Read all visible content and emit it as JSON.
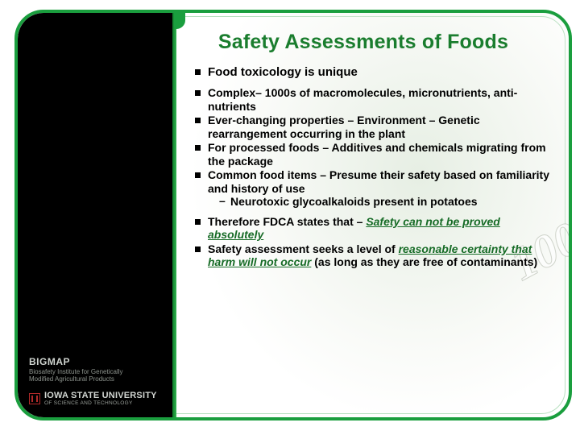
{
  "colors": {
    "frame_border": "#1a9e3e",
    "frame_inner": "#b8e0c0",
    "title_color": "#1a7d2e",
    "emphasis_color": "#166b26",
    "left_panel_bg": "#000000",
    "left_edge_a": "#0f7a2a",
    "left_edge_b": "#2fb54e",
    "bg_mark": "#b02a2a"
  },
  "bg_watermark": "100",
  "title": "Safety Assessments of Foods",
  "heading": "Food toxicology is unique",
  "bullets_a": [
    "Complex– 1000s of macromolecules, micronutrients, anti-nutrients",
    "Ever-changing properties – Environment – Genetic rearrangement occurring in the plant",
    "For processed foods – Additives and chemicals migrating from the package",
    "Common food items – Presume their safety based on familiarity and history of use"
  ],
  "sub_a": "Neurotoxic glycoalkaloids present in potatoes",
  "bullets_b_pre_1": "Therefore FDCA states that – ",
  "bullets_b_emph_1": "Safety can not be proved absolutely",
  "bullets_b_pre_2": "Safety assessment seeks a level of ",
  "bullets_b_emph_2": "reasonable certainty that harm will not occur",
  "bullets_b_post_2": " (as long as they are free of contaminants)",
  "logo": {
    "bigmap": "BIGMAP",
    "bigmap_sub_1": "Biosafety Institute for Genetically",
    "bigmap_sub_2": "Modified Agricultural Products",
    "isu_name": "IOWA STATE UNIVERSITY",
    "isu_sub": "OF SCIENCE AND TECHNOLOGY"
  }
}
